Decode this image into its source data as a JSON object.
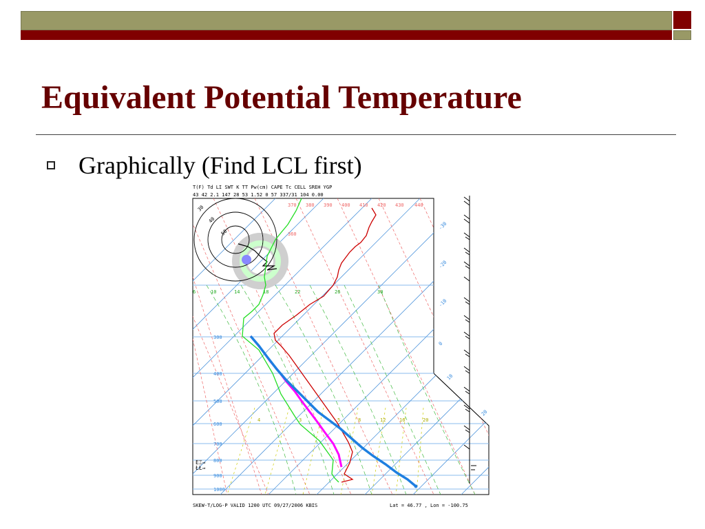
{
  "slide": {
    "title": "Equivalent Potential Temperature",
    "bullet": "Graphically (Find LCL first)"
  },
  "colors": {
    "title": "#660000",
    "band_olive": "#999966",
    "band_maroon": "#800000",
    "temperature_trace": "#cc0000",
    "dewpoint_trace": "#22dd22",
    "parcel_trace": "#ff00ff",
    "theta_e_trace": "#1e7fe0",
    "isotherms": "#5599dd",
    "dry_adiabats": "#ee6666",
    "moist_adiabats": "#44bb44",
    "mixing_ratio": "#cccc00"
  },
  "header_table": {
    "columns": [
      "T(F)",
      "Td",
      "LI",
      "SWT",
      "K",
      "TT",
      "Pw(cm)",
      "CAPE",
      "Tc",
      "CELL",
      "SREH",
      "YGP"
    ],
    "values": [
      "43",
      "42",
      "2.1",
      "147",
      "28",
      "53",
      "1.52",
      "0",
      "57",
      "337/31",
      "104",
      "0.00"
    ]
  },
  "theta_labels": [
    "370",
    "380",
    "390",
    "400",
    "410",
    "420",
    "430",
    "440"
  ],
  "theta_label_360": "360",
  "pressure_labels": [
    "300",
    "400",
    "500",
    "600",
    "700",
    "800",
    "900",
    "1000"
  ],
  "hodograph_labels": [
    "30",
    "40",
    "50"
  ],
  "mid_row_labels": [
    "6",
    "10",
    "14",
    "18",
    "22",
    "26",
    "30"
  ],
  "mixing_labels": [
    "4",
    "3",
    "5",
    "8",
    "12",
    "16",
    "20"
  ],
  "isotherm_labels": [
    "-30",
    "-20",
    "-10",
    "0",
    "10",
    "20"
  ],
  "footer": {
    "left": "SKEW-T/LOG-P VALID 1200 UTC 09/27/2006    KBIS",
    "right": "Lat =    46.77 , Lon =  -100.75"
  }
}
